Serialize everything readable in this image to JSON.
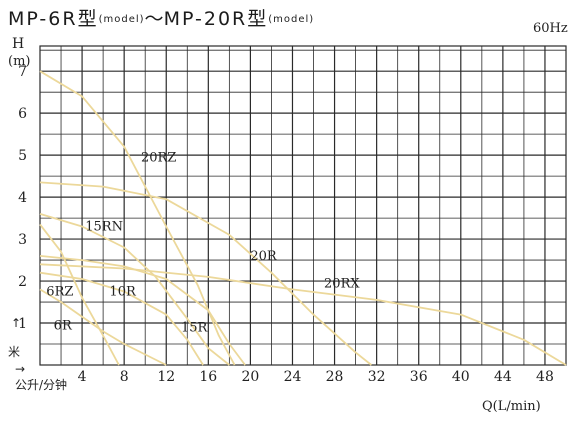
{
  "title": {
    "part1": "MP-6R型",
    "model1": "(model)",
    "tilde": "～",
    "part2": "MP-20R型",
    "model2": "(model)"
  },
  "chart_data": {
    "type": "line",
    "frequency_label": "60Hz",
    "ylabel_letter": "H",
    "ylabel_unit": "(m)",
    "ylabel_cn": "米",
    "ylabel_arrow": "↑",
    "xlabel_cn": "公升/分钟",
    "xlabel_arrow": "→",
    "xlabel": "Q(L/min)",
    "xlim": [
      0,
      50
    ],
    "ylim": [
      0,
      7.6
    ],
    "x_ticks": [
      4,
      8,
      12,
      16,
      20,
      24,
      28,
      32,
      36,
      40,
      44,
      48
    ],
    "x_tick_labels": [
      "4",
      "8",
      "12",
      "16",
      "20",
      "24",
      "28",
      "32",
      "36",
      "40",
      "44",
      "48"
    ],
    "y_ticks": [
      1,
      2,
      3,
      4,
      5,
      6,
      7
    ],
    "y_tick_labels": [
      "1",
      "2",
      "3",
      "4",
      "5",
      "6",
      "7"
    ],
    "grid": true,
    "curve_color": "#ecd89a",
    "series": [
      {
        "name": "6R",
        "x": [
          0,
          2,
          4,
          6,
          8,
          10,
          12
        ],
        "y": [
          1.8,
          1.5,
          1.15,
          0.8,
          0.5,
          0.25,
          0
        ]
      },
      {
        "name": "6RZ",
        "x": [
          0,
          2,
          4,
          6,
          7.5
        ],
        "y": [
          3.35,
          2.7,
          1.6,
          0.7,
          0
        ]
      },
      {
        "name": "10R",
        "x": [
          0,
          4,
          8,
          12,
          14,
          15.5
        ],
        "y": [
          2.2,
          2.05,
          1.75,
          1.2,
          0.6,
          0
        ]
      },
      {
        "name": "15R",
        "x": [
          0,
          4,
          8,
          12,
          16,
          18,
          19.5
        ],
        "y": [
          2.6,
          2.5,
          2.35,
          2.05,
          1.3,
          0.5,
          0
        ]
      },
      {
        "name": "15RN",
        "x": [
          0,
          4,
          8,
          11,
          14,
          16,
          18
        ],
        "y": [
          3.6,
          3.3,
          2.8,
          2.1,
          1.1,
          0.4,
          0
        ]
      },
      {
        "name": "20R",
        "x": [
          0,
          6,
          12,
          18,
          22,
          26,
          30,
          31.5
        ],
        "y": [
          4.35,
          4.25,
          3.95,
          3.1,
          2.2,
          1.2,
          0.3,
          0
        ]
      },
      {
        "name": "20RX",
        "x": [
          0,
          8,
          16,
          24,
          32,
          40,
          46,
          50
        ],
        "y": [
          2.4,
          2.3,
          2.1,
          1.8,
          1.55,
          1.2,
          0.6,
          0
        ]
      },
      {
        "name": "20RZ",
        "x": [
          0,
          4,
          8,
          12,
          15,
          17,
          18.5
        ],
        "y": [
          7,
          6.4,
          5.2,
          3.3,
          1.9,
          0.7,
          0
        ]
      }
    ],
    "annotations": [
      {
        "text": "20RZ",
        "x": 9.6,
        "y": 4.85
      },
      {
        "text": "15RN",
        "x": 4.3,
        "y": 3.2
      },
      {
        "text": "20R",
        "x": 20,
        "y": 2.5
      },
      {
        "text": "20RX",
        "x": 27,
        "y": 1.85
      },
      {
        "text": "6RZ",
        "x": 0.6,
        "y": 1.65
      },
      {
        "text": "10R",
        "x": 6.6,
        "y": 1.65
      },
      {
        "text": "6R",
        "x": 1.3,
        "y": 0.85
      },
      {
        "text": "15R",
        "x": 13.4,
        "y": 0.8
      }
    ]
  }
}
